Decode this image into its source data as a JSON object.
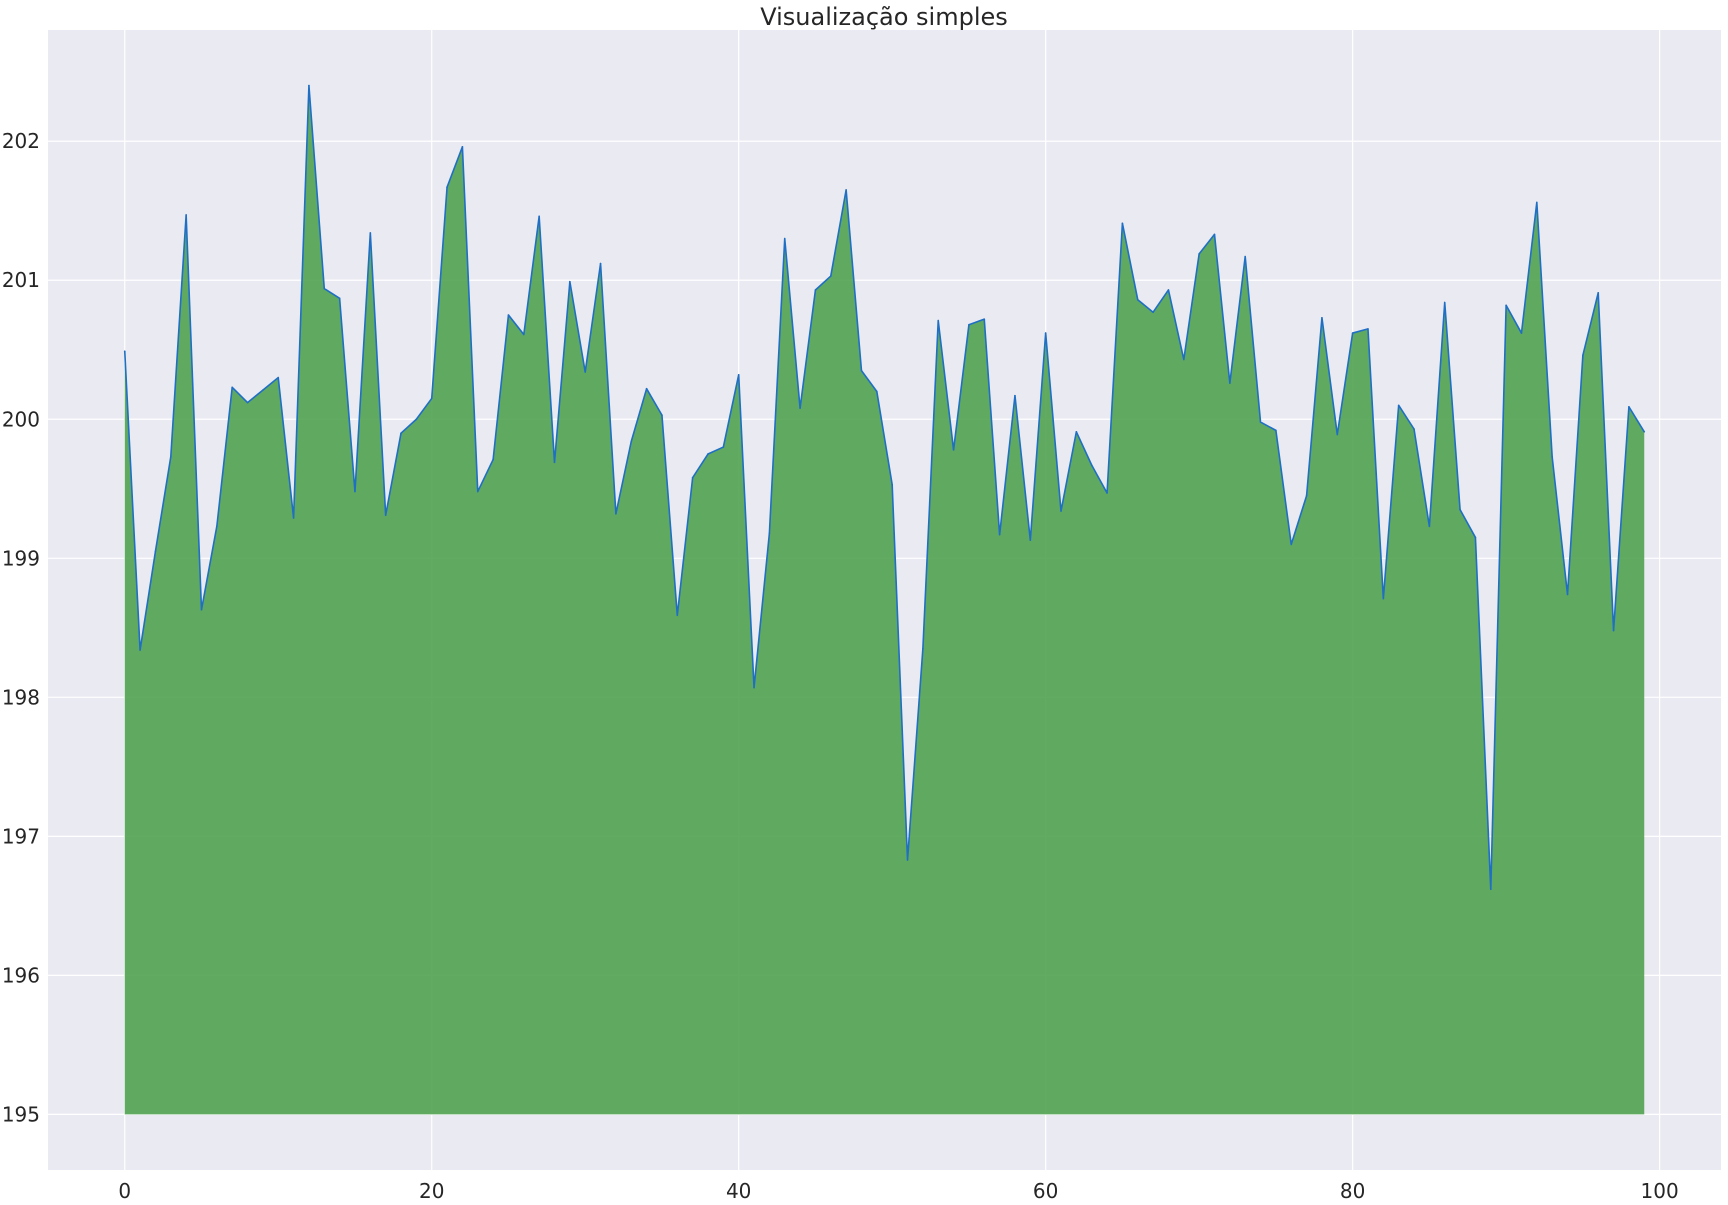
{
  "chart_data": {
    "type": "area",
    "title": "Visualização simples",
    "xlabel": "",
    "ylabel": "",
    "xlim": [
      -5,
      104
    ],
    "ylim": [
      194.6,
      202.8
    ],
    "xticks": [
      0,
      20,
      40,
      60,
      80,
      100
    ],
    "yticks": [
      195,
      196,
      197,
      198,
      199,
      200,
      201,
      202
    ],
    "xtick_labels": [
      "0",
      "20",
      "40",
      "60",
      "80",
      "100"
    ],
    "ytick_labels": [
      "195",
      "196",
      "197",
      "198",
      "199",
      "200",
      "201",
      "202"
    ],
    "grid": true,
    "legend": "none",
    "fill_baseline": 195,
    "colors": {
      "background": "#eaeaf2",
      "fill": "#4c9f4c",
      "line": "#1f6fc4",
      "grid": "#ffffff"
    },
    "series": [
      {
        "x": [
          0,
          1,
          2,
          3,
          4,
          5,
          6,
          7,
          8,
          9,
          10,
          11,
          12,
          13,
          14,
          15,
          16,
          17,
          18,
          19,
          20,
          21,
          22,
          23,
          24,
          25,
          26,
          27,
          28,
          29,
          30,
          31,
          32,
          33,
          34,
          35,
          36,
          37,
          38,
          39,
          40,
          41,
          42,
          43,
          44,
          45,
          46,
          47,
          48,
          49,
          50,
          51,
          52,
          53,
          54,
          55,
          56,
          57,
          58,
          59,
          60,
          61,
          62,
          63,
          64,
          65,
          66,
          67,
          68,
          69,
          70,
          71,
          72,
          73,
          74,
          75,
          76,
          77,
          78,
          79,
          80,
          81,
          82,
          83,
          84,
          85,
          86,
          87,
          88,
          89,
          90,
          91,
          92,
          93,
          94,
          95,
          96,
          97,
          98,
          99
        ],
        "values": [
          200.49,
          198.34,
          199.05,
          199.73,
          201.47,
          198.63,
          199.23,
          200.23,
          200.12,
          200.21,
          200.3,
          199.29,
          202.4,
          200.94,
          200.87,
          199.48,
          201.34,
          199.31,
          199.9,
          200.0,
          200.15,
          201.67,
          201.96,
          199.48,
          199.71,
          200.75,
          200.61,
          201.46,
          199.69,
          200.99,
          200.34,
          201.12,
          199.32,
          199.84,
          200.22,
          200.03,
          198.59,
          199.58,
          199.75,
          199.8,
          200.32,
          198.07,
          199.18,
          201.3,
          200.08,
          200.93,
          201.03,
          201.65,
          200.35,
          200.2,
          199.53,
          196.83,
          198.35,
          200.71,
          199.78,
          200.68,
          200.72,
          199.17,
          200.17,
          199.13,
          200.62,
          199.34,
          199.91,
          199.67,
          199.47,
          201.41,
          200.86,
          200.77,
          200.93,
          200.43,
          201.19,
          201.33,
          200.26,
          201.17,
          199.98,
          199.92,
          199.1,
          199.45,
          200.73,
          199.89,
          200.62,
          200.65,
          198.71,
          200.1,
          199.93,
          199.23,
          200.84,
          199.35,
          199.15,
          196.62,
          200.82,
          200.62,
          201.56,
          199.73,
          198.74,
          200.46,
          200.91,
          198.48,
          200.09,
          199.91
        ]
      }
    ]
  }
}
